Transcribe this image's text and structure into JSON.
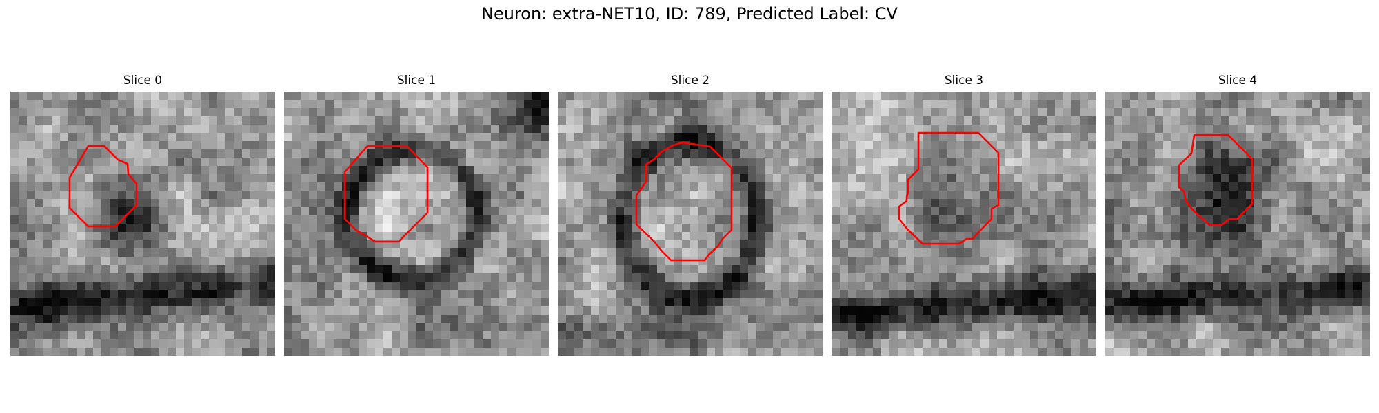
{
  "figure": {
    "title": "Neuron: extra-NET10, ID: 789, Predicted Label: CV",
    "contour_color": "#ff0000",
    "colormap": "grayscale",
    "slices": [
      {
        "title": "Slice 0"
      },
      {
        "title": "Slice 1"
      },
      {
        "title": "Slice 2"
      },
      {
        "title": "Slice 3"
      },
      {
        "title": "Slice 4"
      }
    ]
  }
}
